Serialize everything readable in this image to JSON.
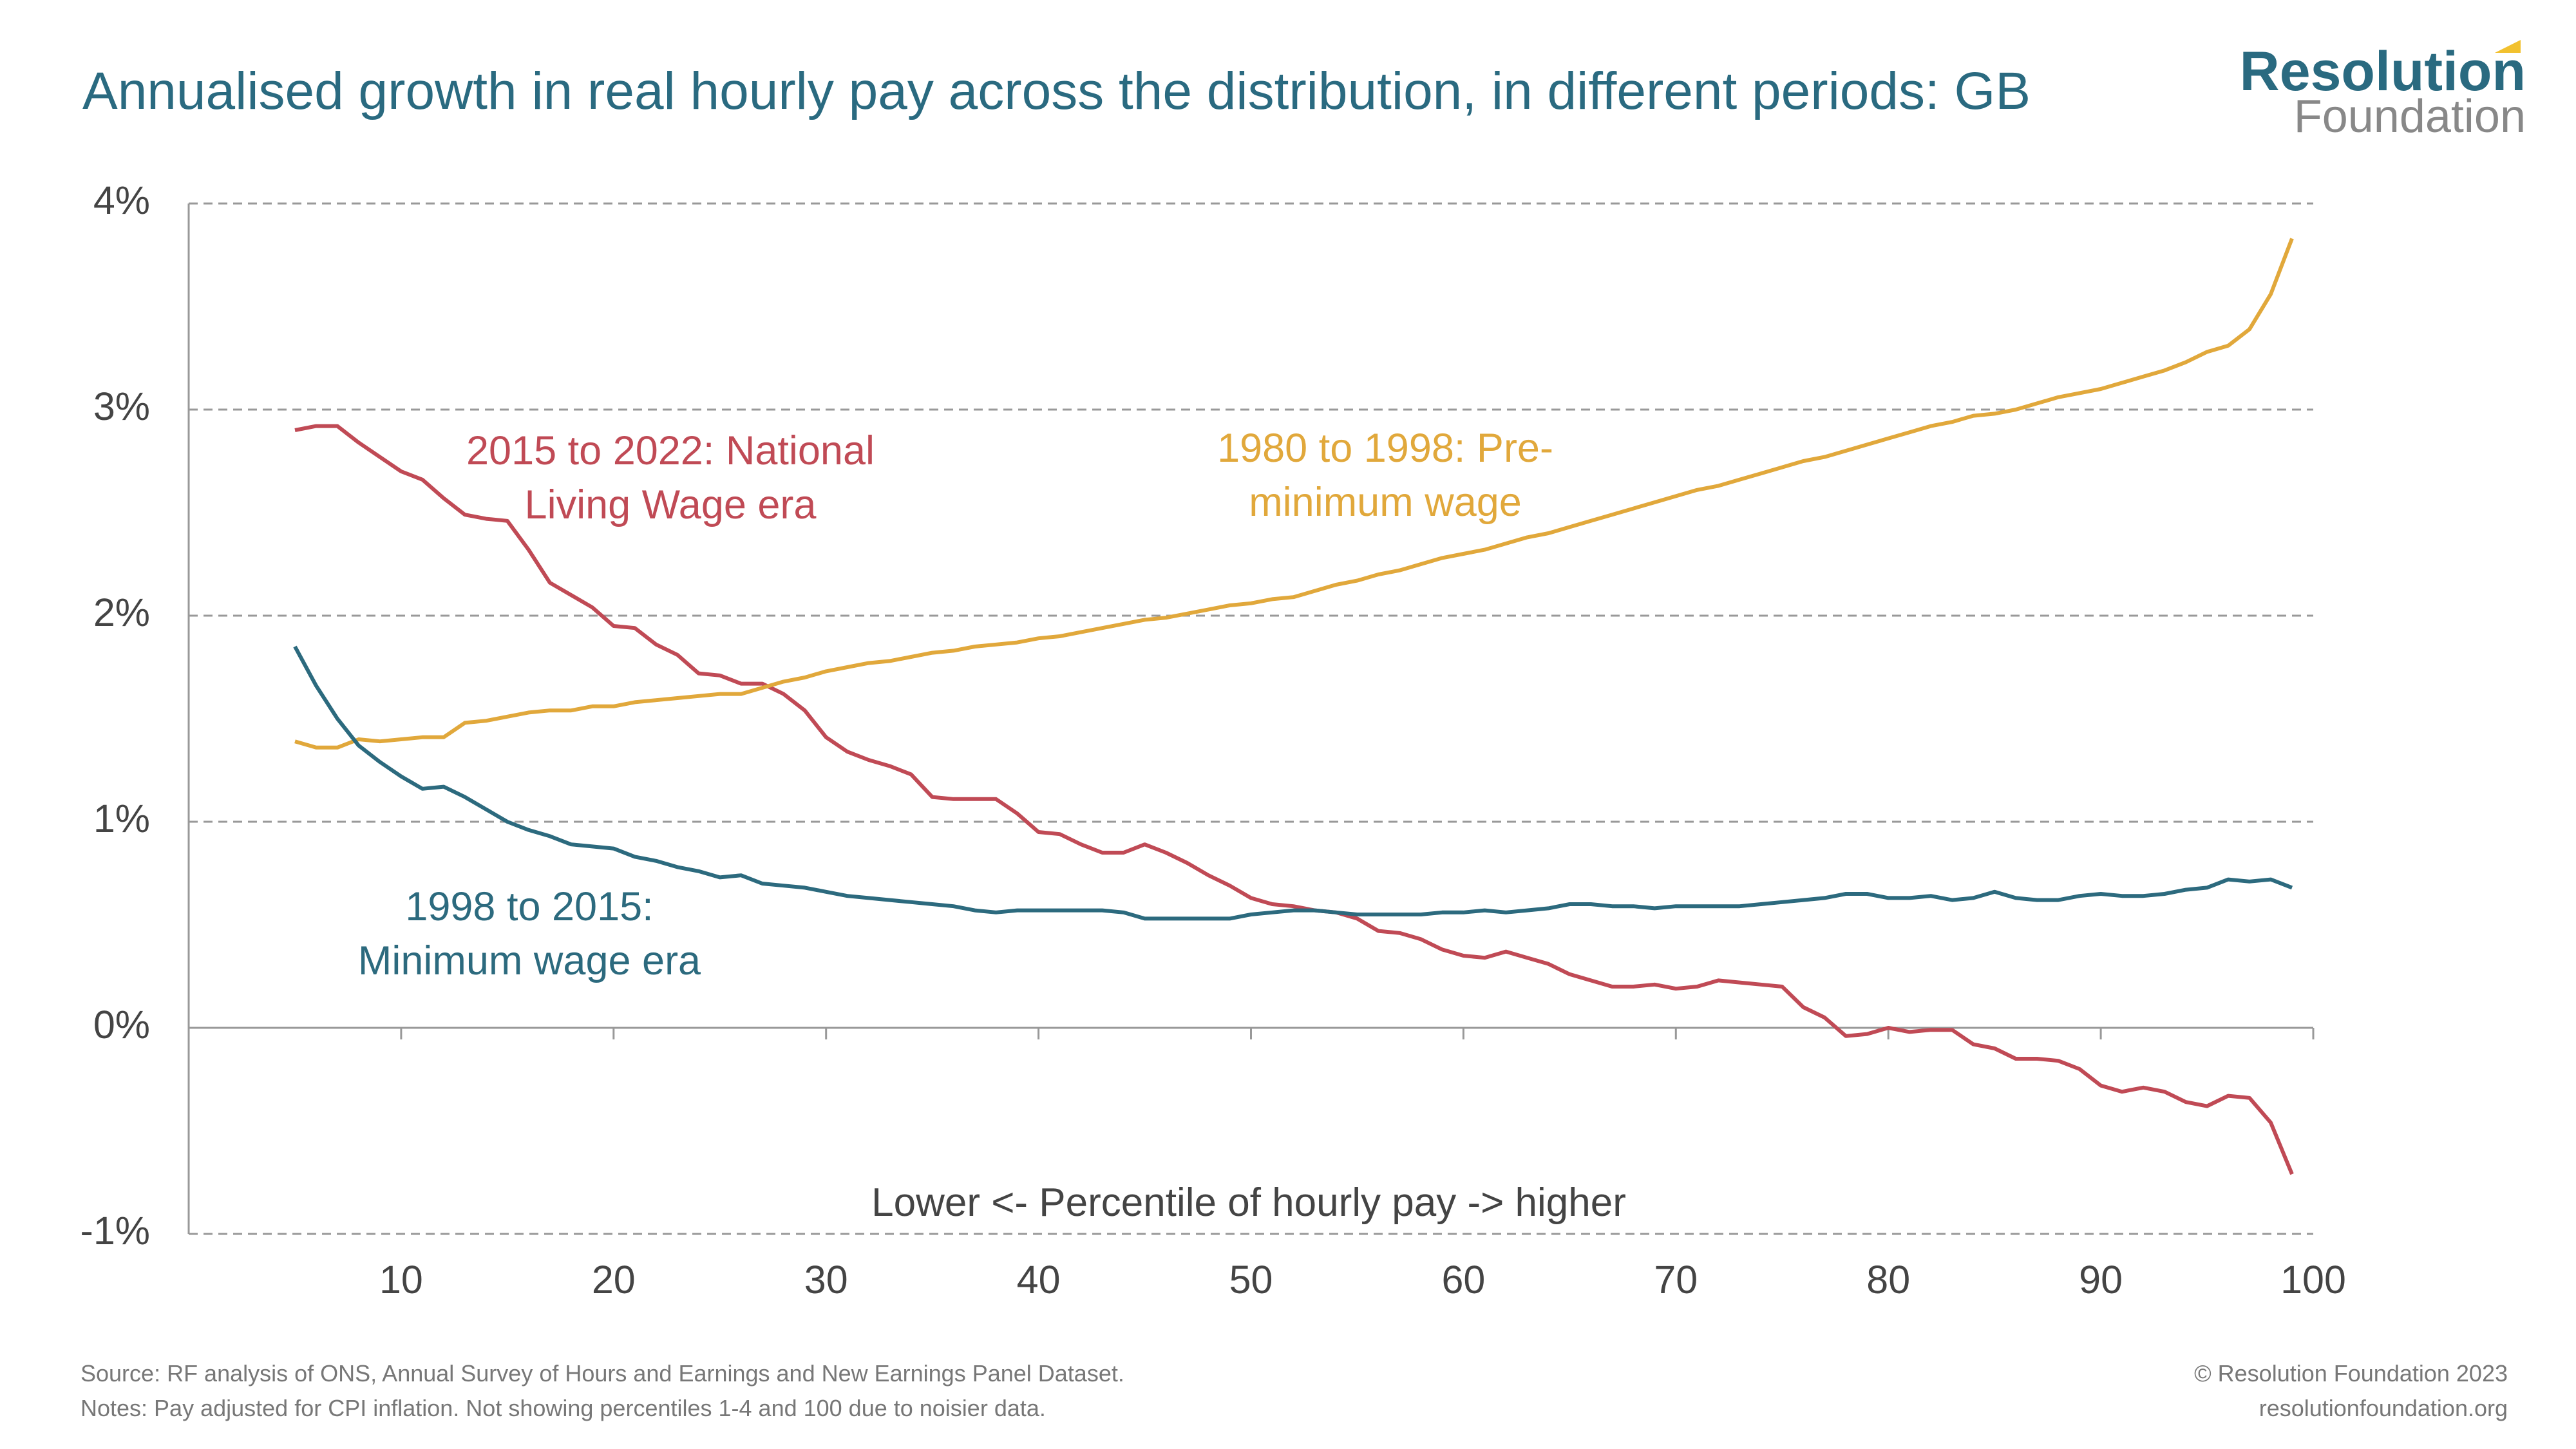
{
  "chart_data": {
    "type": "line",
    "title": "Annualised growth in real hourly pay across the distribution, in different periods: GB",
    "x_label": "Lower <- Percentile of hourly pay -> higher",
    "x": [
      5,
      6,
      7,
      8,
      9,
      10,
      11,
      12,
      13,
      14,
      15,
      16,
      17,
      18,
      19,
      20,
      21,
      22,
      23,
      24,
      25,
      26,
      27,
      28,
      29,
      30,
      31,
      32,
      33,
      34,
      35,
      36,
      37,
      38,
      39,
      40,
      41,
      42,
      43,
      44,
      45,
      46,
      47,
      48,
      49,
      50,
      51,
      52,
      53,
      54,
      55,
      56,
      57,
      58,
      59,
      60,
      61,
      62,
      63,
      64,
      65,
      66,
      67,
      68,
      69,
      70,
      71,
      72,
      73,
      74,
      75,
      76,
      77,
      78,
      79,
      80,
      81,
      82,
      83,
      84,
      85,
      86,
      87,
      88,
      89,
      90,
      91,
      92,
      93,
      94,
      95,
      96,
      97,
      98,
      99
    ],
    "series": [
      {
        "name": "2015 to 2022: National Living Wage era",
        "color": "#c04a55",
        "values": [
          2.9,
          2.92,
          2.92,
          2.84,
          2.77,
          2.7,
          2.66,
          2.57,
          2.49,
          2.47,
          2.46,
          2.32,
          2.16,
          2.1,
          2.04,
          1.95,
          1.94,
          1.86,
          1.81,
          1.72,
          1.71,
          1.67,
          1.67,
          1.62,
          1.54,
          1.41,
          1.34,
          1.3,
          1.27,
          1.23,
          1.12,
          1.11,
          1.11,
          1.11,
          1.04,
          0.95,
          0.94,
          0.89,
          0.85,
          0.85,
          0.89,
          0.85,
          0.8,
          0.74,
          0.69,
          0.63,
          0.6,
          0.59,
          0.57,
          0.56,
          0.53,
          0.47,
          0.46,
          0.43,
          0.38,
          0.35,
          0.34,
          0.37,
          0.34,
          0.31,
          0.26,
          0.23,
          0.2,
          0.2,
          0.21,
          0.19,
          0.2,
          0.23,
          0.22,
          0.21,
          0.2,
          0.1,
          0.05,
          -0.04,
          -0.03,
          0.0,
          -0.02,
          -0.01,
          -0.01,
          -0.08,
          -0.1,
          -0.15,
          -0.15,
          -0.16,
          -0.2,
          -0.28,
          -0.31,
          -0.29,
          -0.31,
          -0.36,
          -0.38,
          -0.33,
          -0.34,
          -0.46,
          -0.71
        ]
      },
      {
        "name": "1980 to 1998: Pre-minimum wage",
        "color": "#e1a83b",
        "values": [
          1.39,
          1.36,
          1.36,
          1.4,
          1.39,
          1.4,
          1.41,
          1.41,
          1.48,
          1.49,
          1.51,
          1.53,
          1.54,
          1.54,
          1.56,
          1.56,
          1.58,
          1.59,
          1.6,
          1.61,
          1.62,
          1.62,
          1.65,
          1.68,
          1.7,
          1.73,
          1.75,
          1.77,
          1.78,
          1.8,
          1.82,
          1.83,
          1.85,
          1.86,
          1.87,
          1.89,
          1.9,
          1.92,
          1.94,
          1.96,
          1.98,
          1.99,
          2.01,
          2.03,
          2.05,
          2.06,
          2.08,
          2.09,
          2.12,
          2.15,
          2.17,
          2.2,
          2.22,
          2.25,
          2.28,
          2.3,
          2.32,
          2.35,
          2.38,
          2.4,
          2.43,
          2.46,
          2.49,
          2.52,
          2.55,
          2.58,
          2.61,
          2.63,
          2.66,
          2.69,
          2.72,
          2.75,
          2.77,
          2.8,
          2.83,
          2.86,
          2.89,
          2.92,
          2.94,
          2.97,
          2.98,
          3.0,
          3.03,
          3.06,
          3.08,
          3.1,
          3.13,
          3.16,
          3.19,
          3.23,
          3.28,
          3.31,
          3.39,
          3.56,
          3.83
        ]
      },
      {
        "name": "1998 to 2015: Minimum wage era",
        "color": "#2c6a7e",
        "values": [
          1.85,
          1.66,
          1.5,
          1.37,
          1.29,
          1.22,
          1.16,
          1.17,
          1.12,
          1.06,
          1.0,
          0.96,
          0.93,
          0.89,
          0.88,
          0.87,
          0.83,
          0.81,
          0.78,
          0.76,
          0.73,
          0.74,
          0.7,
          0.69,
          0.68,
          0.66,
          0.64,
          0.63,
          0.62,
          0.61,
          0.6,
          0.59,
          0.57,
          0.56,
          0.57,
          0.57,
          0.57,
          0.57,
          0.57,
          0.56,
          0.53,
          0.53,
          0.53,
          0.53,
          0.53,
          0.55,
          0.56,
          0.57,
          0.57,
          0.56,
          0.55,
          0.55,
          0.55,
          0.55,
          0.56,
          0.56,
          0.57,
          0.56,
          0.57,
          0.58,
          0.6,
          0.6,
          0.59,
          0.59,
          0.58,
          0.59,
          0.59,
          0.59,
          0.59,
          0.6,
          0.61,
          0.62,
          0.63,
          0.65,
          0.65,
          0.63,
          0.63,
          0.64,
          0.62,
          0.63,
          0.66,
          0.63,
          0.62,
          0.62,
          0.64,
          0.65,
          0.64,
          0.64,
          0.65,
          0.67,
          0.68,
          0.72,
          0.71,
          0.72,
          0.68
        ]
      }
    ],
    "xlim": [
      0,
      100
    ],
    "xticks": [
      10,
      20,
      30,
      40,
      50,
      60,
      70,
      80,
      90,
      100
    ],
    "ylim": [
      -1,
      4
    ],
    "yticks": [
      {
        "value": -1,
        "label": "-1%"
      },
      {
        "value": 0,
        "label": "0%"
      },
      {
        "value": 1,
        "label": "1%"
      },
      {
        "value": 2,
        "label": "2%"
      },
      {
        "value": 3,
        "label": "3%"
      },
      {
        "value": 4,
        "label": "4%"
      }
    ],
    "grid": true
  },
  "logo": {
    "line1": "Resolution",
    "line2": "Foundation"
  },
  "footer": {
    "source": "Source: RF analysis of ONS, Annual Survey of Hours and Earnings and New Earnings Panel Dataset.",
    "notes": "Notes: Pay adjusted for CPI inflation. Not showing percentiles 1-4 and 100 due to noisier data.",
    "copyright": "© Resolution Foundation 2023",
    "website": "resolutionfoundation.org"
  }
}
